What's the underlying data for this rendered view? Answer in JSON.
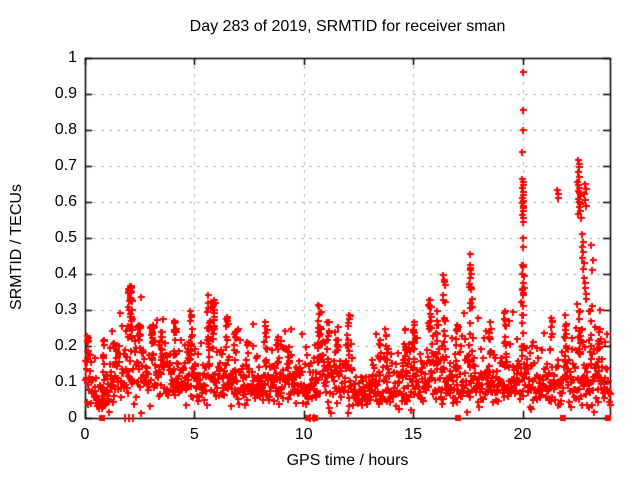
{
  "chart_data": {
    "type": "scatter",
    "title": "Day 283 of 2019, SRMTID for receiver sman",
    "xlabel": "GPS time / hours",
    "ylabel": "SRMTID / TECUs",
    "xlim": [
      0,
      24
    ],
    "ylim": [
      0,
      1
    ],
    "xticks": [
      0,
      5,
      10,
      15,
      20
    ],
    "yticks": [
      0,
      0.1,
      0.2,
      0.3,
      0.4,
      0.5,
      0.6,
      0.7,
      0.8,
      0.9,
      1
    ],
    "grid": true,
    "grid_style": "dashed",
    "grid_color": "#b4b4b4",
    "frame_color": "#000000",
    "background": "#ffffff",
    "marker": {
      "shape": "plus",
      "color": "#ff0000",
      "size": 7
    },
    "legend": "none",
    "sample_step_hours": 0.018,
    "band_sigma": 0.42,
    "band_profile": [
      [
        0,
        0.115
      ],
      [
        0.3,
        0.09
      ],
      [
        0.6,
        0.055
      ],
      [
        0.9,
        0.06
      ],
      [
        1.2,
        0.11
      ],
      [
        1.5,
        0.12
      ],
      [
        1.8,
        0.11
      ],
      [
        2.05,
        0.16
      ],
      [
        2.35,
        0.17
      ],
      [
        2.7,
        0.14
      ],
      [
        3.1,
        0.13
      ],
      [
        3.5,
        0.12
      ],
      [
        3.9,
        0.11
      ],
      [
        4.3,
        0.11
      ],
      [
        4.8,
        0.125
      ],
      [
        5.2,
        0.105
      ],
      [
        5.65,
        0.13
      ],
      [
        6.0,
        0.11
      ],
      [
        6.5,
        0.115
      ],
      [
        7.0,
        0.1
      ],
      [
        7.5,
        0.095
      ],
      [
        8.0,
        0.1
      ],
      [
        8.5,
        0.105
      ],
      [
        9.0,
        0.1
      ],
      [
        9.5,
        0.09
      ],
      [
        10.0,
        0.095
      ],
      [
        10.4,
        0.1
      ],
      [
        10.7,
        0.13
      ],
      [
        11.1,
        0.11
      ],
      [
        11.5,
        0.1
      ],
      [
        12.0,
        0.115
      ],
      [
        12.4,
        0.075
      ],
      [
        12.8,
        0.07
      ],
      [
        13.2,
        0.085
      ],
      [
        13.6,
        0.09
      ],
      [
        14.0,
        0.095
      ],
      [
        14.4,
        0.09
      ],
      [
        14.8,
        0.1
      ],
      [
        15.2,
        0.105
      ],
      [
        15.6,
        0.11
      ],
      [
        16.0,
        0.12
      ],
      [
        16.4,
        0.115
      ],
      [
        16.8,
        0.1
      ],
      [
        17.2,
        0.105
      ],
      [
        17.6,
        0.115
      ],
      [
        18.0,
        0.11
      ],
      [
        18.4,
        0.1
      ],
      [
        18.8,
        0.1
      ],
      [
        19.2,
        0.105
      ],
      [
        19.6,
        0.11
      ],
      [
        20.0,
        0.125
      ],
      [
        20.4,
        0.1
      ],
      [
        20.8,
        0.09
      ],
      [
        21.2,
        0.1
      ],
      [
        21.6,
        0.095
      ],
      [
        22.0,
        0.105
      ],
      [
        22.4,
        0.115
      ],
      [
        22.8,
        0.125
      ],
      [
        23.2,
        0.115
      ],
      [
        23.6,
        0.11
      ],
      [
        24,
        0.1
      ]
    ],
    "spikes": [
      {
        "t": 0.1,
        "top": 0.23,
        "n": 6
      },
      {
        "t": 0.85,
        "top": 0.22,
        "n": 8
      },
      {
        "t": 1.35,
        "top": 0.21,
        "n": 6
      },
      {
        "t": 2.05,
        "top": 0.37,
        "n": 30,
        "w": 0.2
      },
      {
        "t": 2.45,
        "top": 0.26,
        "n": 10
      },
      {
        "t": 3.1,
        "top": 0.26,
        "n": 12,
        "w": 0.18
      },
      {
        "t": 3.5,
        "top": 0.24,
        "n": 8
      },
      {
        "t": 4.1,
        "top": 0.27,
        "n": 10
      },
      {
        "t": 4.8,
        "top": 0.3,
        "n": 12,
        "w": 0.18
      },
      {
        "t": 5.65,
        "top": 0.345,
        "n": 13
      },
      {
        "t": 5.9,
        "top": 0.33,
        "n": 11
      },
      {
        "t": 6.5,
        "top": 0.28,
        "n": 9
      },
      {
        "t": 6.85,
        "top": 0.24,
        "n": 6
      },
      {
        "t": 7.45,
        "top": 0.21,
        "n": 5
      },
      {
        "t": 8.25,
        "top": 0.27,
        "n": 9
      },
      {
        "t": 8.8,
        "top": 0.22,
        "n": 6
      },
      {
        "t": 9.3,
        "top": 0.2,
        "n": 5
      },
      {
        "t": 10.7,
        "top": 0.315,
        "n": 15,
        "w": 0.15
      },
      {
        "t": 11.1,
        "top": 0.27,
        "n": 8
      },
      {
        "t": 11.5,
        "top": 0.22,
        "n": 6
      },
      {
        "t": 12.05,
        "top": 0.29,
        "n": 10
      },
      {
        "t": 13.5,
        "top": 0.22,
        "n": 6
      },
      {
        "t": 13.8,
        "top": 0.23,
        "n": 6
      },
      {
        "t": 14.6,
        "top": 0.25,
        "n": 8
      },
      {
        "t": 15.05,
        "top": 0.27,
        "n": 8
      },
      {
        "t": 15.75,
        "top": 0.33,
        "n": 12,
        "w": 0.15
      },
      {
        "t": 16.1,
        "top": 0.3,
        "n": 8
      },
      {
        "t": 16.4,
        "top": 0.4,
        "n": 13
      },
      {
        "t": 17.0,
        "top": 0.26,
        "n": 7
      },
      {
        "t": 17.6,
        "top": 0.43,
        "n": 17,
        "w": 0.15
      },
      {
        "t": 18.5,
        "top": 0.27,
        "n": 8
      },
      {
        "t": 19.2,
        "top": 0.3,
        "n": 10
      },
      {
        "t": 20.0,
        "top": 0.43,
        "n": 18,
        "w": 0.1
      },
      {
        "t": 21.3,
        "top": 0.28,
        "n": 8
      },
      {
        "t": 21.95,
        "top": 0.29,
        "n": 10
      },
      {
        "t": 22.6,
        "top": 0.3,
        "n": 10
      },
      {
        "t": 23.1,
        "top": 0.3,
        "n": 8
      },
      {
        "t": 23.5,
        "top": 0.25,
        "n": 10
      }
    ],
    "outliers": [
      [
        20.0,
        0.96
      ],
      [
        20.0,
        0.855
      ],
      [
        20.01,
        0.8
      ],
      [
        19.99,
        0.74
      ],
      [
        19.97,
        0.665
      ],
      [
        20.0,
        0.656
      ],
      [
        20.02,
        0.647
      ],
      [
        19.97,
        0.638
      ],
      [
        20.0,
        0.629
      ],
      [
        20.02,
        0.62
      ],
      [
        19.98,
        0.612
      ],
      [
        20.01,
        0.604
      ],
      [
        19.99,
        0.597
      ],
      [
        20.03,
        0.59
      ],
      [
        20.0,
        0.582
      ],
      [
        20.01,
        0.574
      ],
      [
        19.98,
        0.565
      ],
      [
        20.02,
        0.556
      ],
      [
        20.0,
        0.545
      ],
      [
        20.0,
        0.5
      ],
      [
        20.04,
        0.476
      ],
      [
        21.57,
        0.632
      ],
      [
        21.62,
        0.623
      ],
      [
        21.6,
        0.61
      ],
      [
        22.52,
        0.716
      ],
      [
        22.56,
        0.706
      ],
      [
        22.6,
        0.697
      ],
      [
        22.54,
        0.682
      ],
      [
        22.58,
        0.67
      ],
      [
        22.5,
        0.656
      ],
      [
        22.55,
        0.648
      ],
      [
        22.6,
        0.639
      ],
      [
        22.52,
        0.631
      ],
      [
        22.57,
        0.624
      ],
      [
        22.62,
        0.616
      ],
      [
        22.54,
        0.609
      ],
      [
        22.59,
        0.601
      ],
      [
        22.64,
        0.594
      ],
      [
        22.56,
        0.585
      ],
      [
        22.61,
        0.576
      ],
      [
        22.53,
        0.566
      ],
      [
        22.66,
        0.556
      ],
      [
        22.85,
        0.65
      ],
      [
        22.88,
        0.636
      ],
      [
        22.83,
        0.621
      ],
      [
        22.87,
        0.606
      ],
      [
        22.9,
        0.59
      ],
      [
        22.7,
        0.51
      ],
      [
        22.75,
        0.49
      ],
      [
        22.72,
        0.476
      ],
      [
        22.78,
        0.46
      ],
      [
        22.74,
        0.445
      ],
      [
        22.8,
        0.43
      ],
      [
        22.76,
        0.415
      ],
      [
        22.82,
        0.39
      ],
      [
        22.86,
        0.375
      ],
      [
        22.84,
        0.36
      ],
      [
        22.88,
        0.345
      ],
      [
        22.9,
        0.33
      ],
      [
        23.15,
        0.48
      ],
      [
        23.2,
        0.44
      ],
      [
        23.18,
        0.41
      ],
      [
        17.58,
        0.455
      ]
    ],
    "zero_markers": [
      {
        "t": 0.78,
        "style": "square"
      },
      {
        "t": 1.9,
        "style": "tick"
      },
      {
        "t": 2.08,
        "style": "tick"
      },
      {
        "t": 10.2,
        "style": "square"
      },
      {
        "t": 10.38,
        "style": "tick"
      },
      {
        "t": 10.52,
        "style": "square"
      },
      {
        "t": 17.05,
        "style": "square"
      },
      {
        "t": 21.85,
        "style": "square"
      },
      {
        "t": 23.9,
        "style": "square"
      }
    ]
  }
}
